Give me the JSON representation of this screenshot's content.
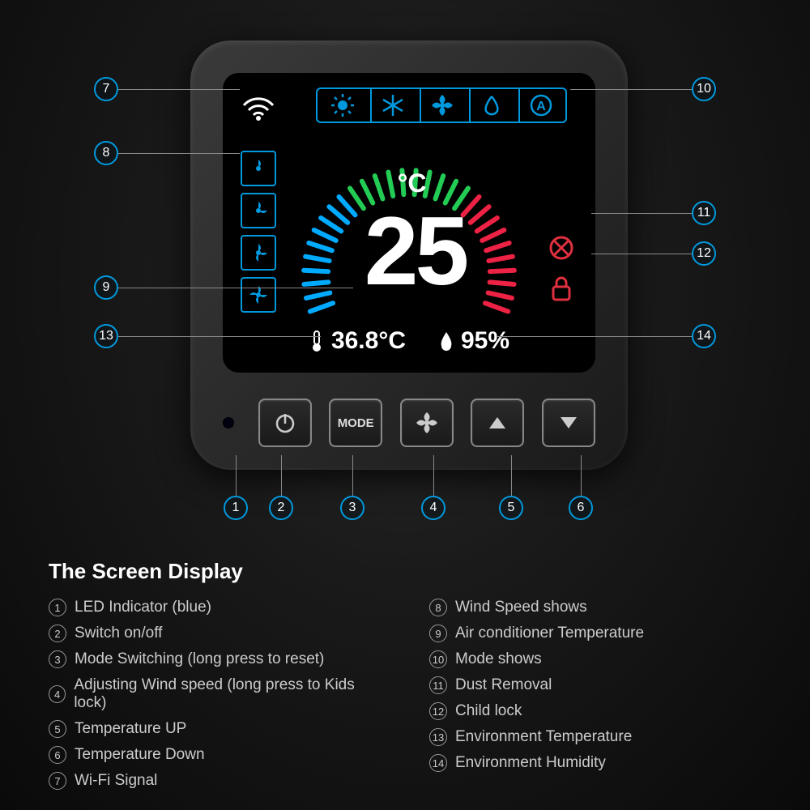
{
  "colors": {
    "accent": "#0099dd",
    "screen_bg": "#000000",
    "device_bg": "#2a2a2a",
    "text": "#ffffff",
    "arc_cold": "#00aaff",
    "arc_mid": "#22cc55",
    "arc_hot": "#ee2244",
    "lock_red": "#e03040",
    "dust_red": "#e03040"
  },
  "display": {
    "set_temp": "25",
    "set_unit": "°C",
    "env_temp": "36.8°C",
    "env_humidity": "95%"
  },
  "buttons": {
    "mode_label": "MODE"
  },
  "legend": {
    "title": "The Screen Display",
    "left": [
      {
        "n": "1",
        "label": "LED Indicator (blue)"
      },
      {
        "n": "2",
        "label": "Switch on/off"
      },
      {
        "n": "3",
        "label": "Mode Switching (long press to reset)"
      },
      {
        "n": "4",
        "label": "Adjusting Wind speed (long press to Kids lock)"
      },
      {
        "n": "5",
        "label": "Temperature UP"
      },
      {
        "n": "6",
        "label": "Temperature Down"
      },
      {
        "n": "7",
        "label": "Wi-Fi Signal"
      }
    ],
    "right": [
      {
        "n": "8",
        "label": "Wind Speed shows"
      },
      {
        "n": "9",
        "label": "Air conditioner Temperature"
      },
      {
        "n": "10",
        "label": "Mode shows"
      },
      {
        "n": "11",
        "label": "Dust Removal"
      },
      {
        "n": "12",
        "label": "Child lock"
      },
      {
        "n": "13",
        "label": "Environment Temperature"
      },
      {
        "n": "14",
        "label": "Environment Humidity"
      }
    ]
  },
  "markers": {
    "m1": "1",
    "m2": "2",
    "m3": "3",
    "m4": "4",
    "m5": "5",
    "m6": "6",
    "m7": "7",
    "m8": "8",
    "m9": "9",
    "m10": "10",
    "m11": "11",
    "m12": "12",
    "m13": "13",
    "m14": "14"
  }
}
